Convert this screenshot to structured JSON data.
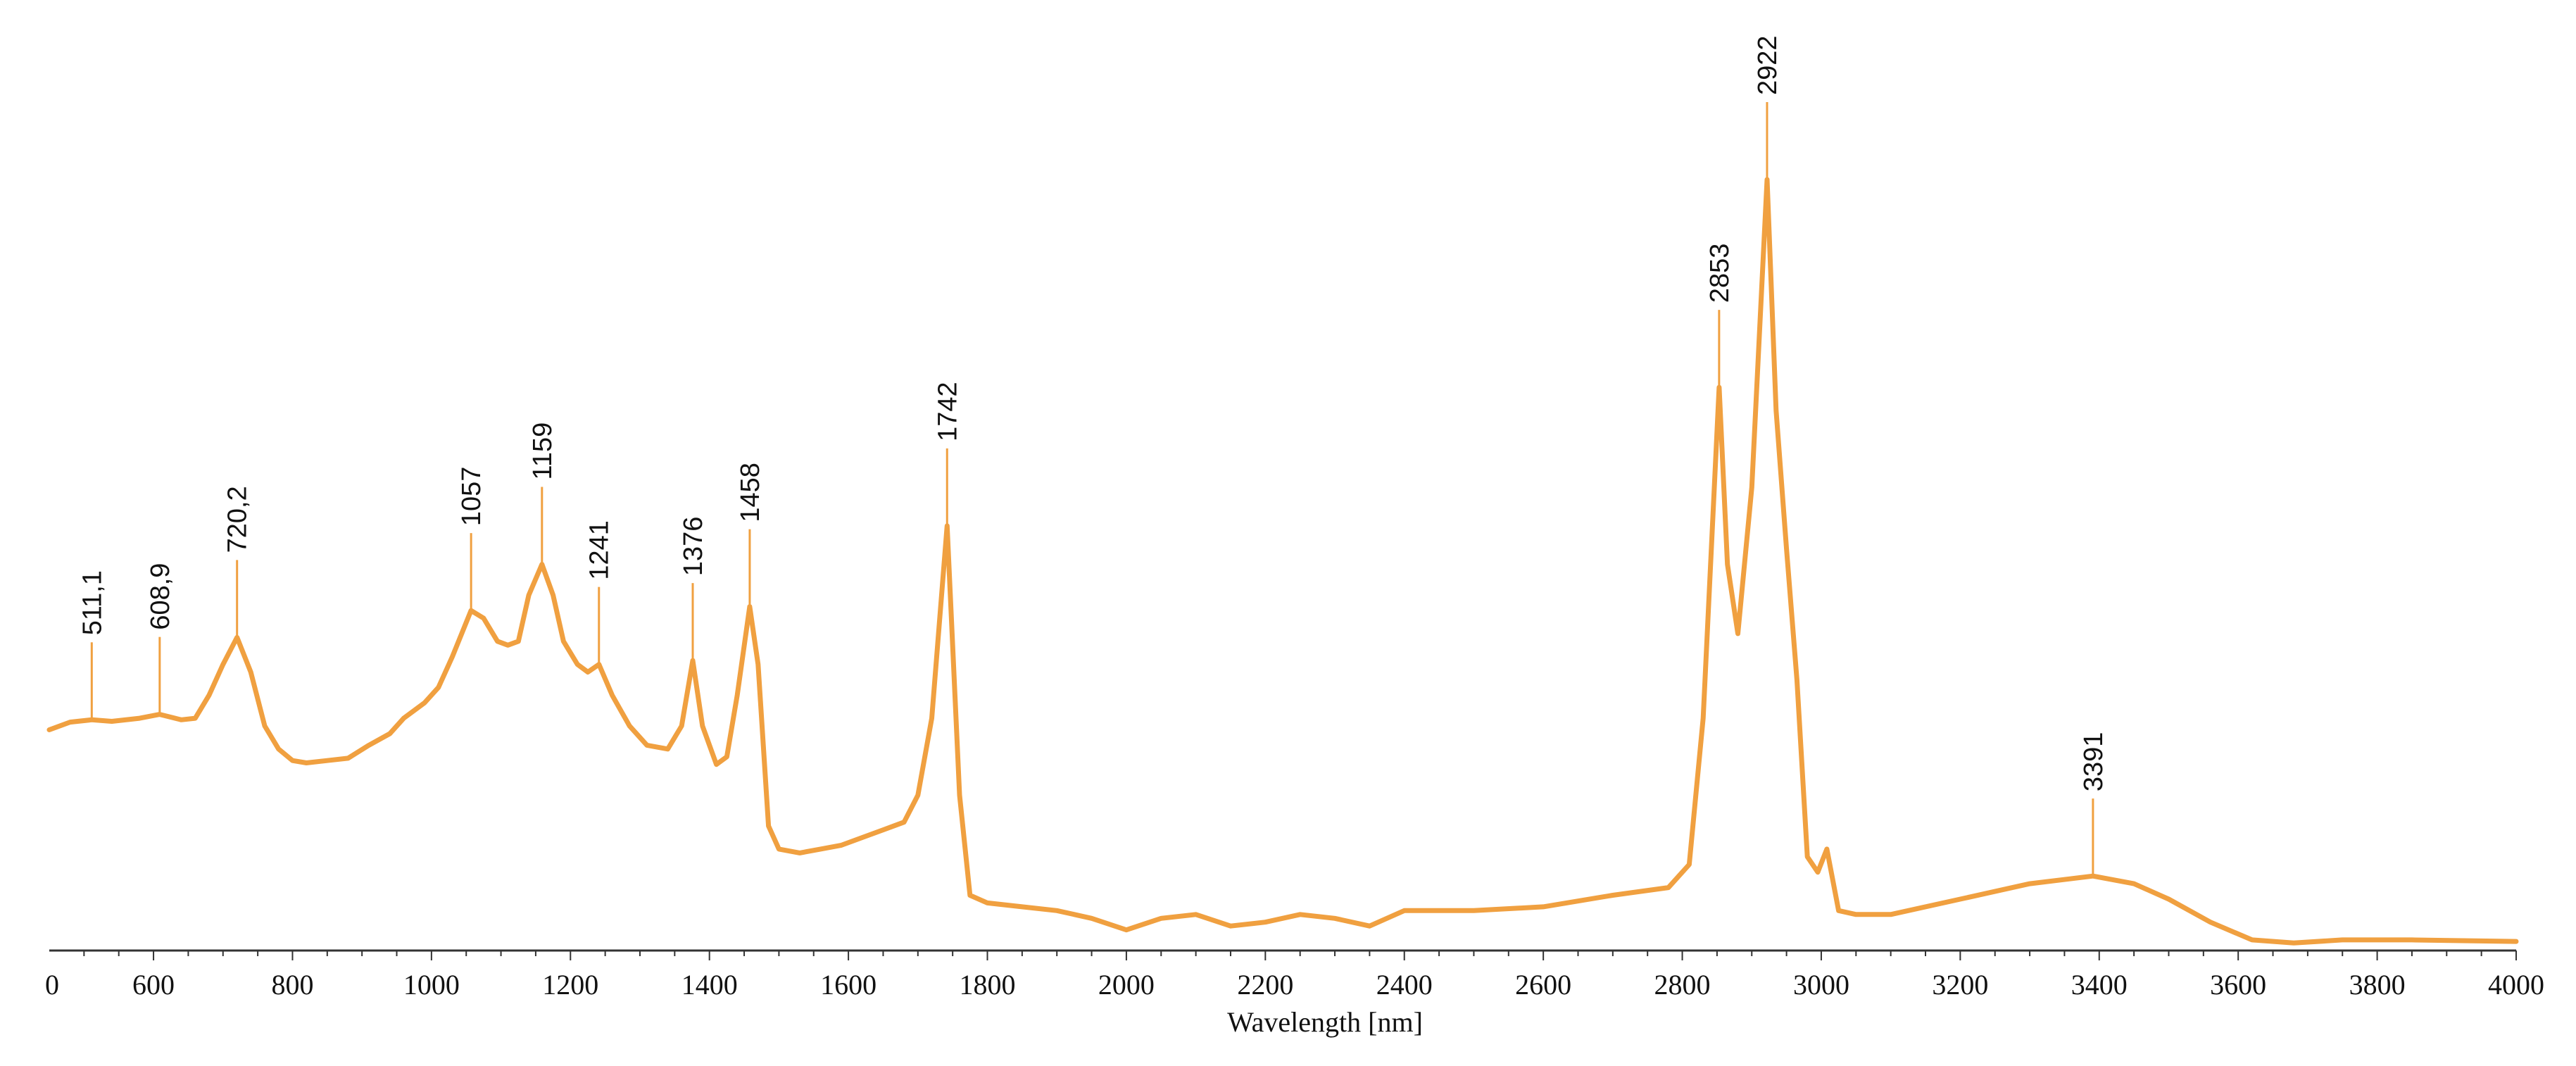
{
  "chart_data": {
    "type": "line",
    "title": "",
    "xlabel": "Wavelength [nm]",
    "ylabel": "",
    "xlim": [
      450,
      4000
    ],
    "ylim": [
      0,
      1.0
    ],
    "grid": false,
    "line_color": "#F0A040",
    "x_ticks": [
      "0",
      "600",
      "800",
      "1000",
      "1200",
      "1400",
      "1600",
      "1800",
      "2000",
      "2200",
      "2400",
      "2600",
      "2800",
      "3000",
      "3200",
      "3400",
      "3600",
      "3800",
      "4000"
    ],
    "series": [
      {
        "points": [
          [
            450,
            0.285
          ],
          [
            480,
            0.295
          ],
          [
            511.1,
            0.298
          ],
          [
            540,
            0.296
          ],
          [
            580,
            0.3
          ],
          [
            608.9,
            0.305
          ],
          [
            640,
            0.298
          ],
          [
            660,
            0.3
          ],
          [
            680,
            0.33
          ],
          [
            700,
            0.37
          ],
          [
            720.2,
            0.405
          ],
          [
            740,
            0.36
          ],
          [
            760,
            0.29
          ],
          [
            780,
            0.26
          ],
          [
            800,
            0.245
          ],
          [
            820,
            0.242
          ],
          [
            850,
            0.245
          ],
          [
            880,
            0.248
          ],
          [
            910,
            0.265
          ],
          [
            940,
            0.28
          ],
          [
            960,
            0.3
          ],
          [
            990,
            0.32
          ],
          [
            1010,
            0.34
          ],
          [
            1030,
            0.38
          ],
          [
            1057,
            0.44
          ],
          [
            1075,
            0.43
          ],
          [
            1095,
            0.4
          ],
          [
            1110,
            0.395
          ],
          [
            1125,
            0.4
          ],
          [
            1140,
            0.46
          ],
          [
            1159,
            0.5
          ],
          [
            1175,
            0.46
          ],
          [
            1190,
            0.4
          ],
          [
            1210,
            0.37
          ],
          [
            1225,
            0.36
          ],
          [
            1241,
            0.37
          ],
          [
            1260,
            0.33
          ],
          [
            1285,
            0.29
          ],
          [
            1310,
            0.265
          ],
          [
            1340,
            0.26
          ],
          [
            1360,
            0.29
          ],
          [
            1376,
            0.375
          ],
          [
            1390,
            0.29
          ],
          [
            1410,
            0.24
          ],
          [
            1425,
            0.25
          ],
          [
            1440,
            0.33
          ],
          [
            1458,
            0.445
          ],
          [
            1470,
            0.37
          ],
          [
            1485,
            0.16
          ],
          [
            1500,
            0.13
          ],
          [
            1530,
            0.125
          ],
          [
            1560,
            0.13
          ],
          [
            1590,
            0.135
          ],
          [
            1620,
            0.145
          ],
          [
            1650,
            0.155
          ],
          [
            1680,
            0.165
          ],
          [
            1700,
            0.2
          ],
          [
            1720,
            0.3
          ],
          [
            1742,
            0.55
          ],
          [
            1760,
            0.2
          ],
          [
            1775,
            0.07
          ],
          [
            1800,
            0.06
          ],
          [
            1850,
            0.055
          ],
          [
            1900,
            0.05
          ],
          [
            1950,
            0.04
          ],
          [
            2000,
            0.025
          ],
          [
            2050,
            0.04
          ],
          [
            2100,
            0.045
          ],
          [
            2150,
            0.03
          ],
          [
            2200,
            0.035
          ],
          [
            2250,
            0.045
          ],
          [
            2300,
            0.04
          ],
          [
            2350,
            0.03
          ],
          [
            2400,
            0.05
          ],
          [
            2500,
            0.05
          ],
          [
            2600,
            0.055
          ],
          [
            2700,
            0.07
          ],
          [
            2780,
            0.08
          ],
          [
            2810,
            0.11
          ],
          [
            2830,
            0.3
          ],
          [
            2853,
            0.73
          ],
          [
            2865,
            0.5
          ],
          [
            2880,
            0.41
          ],
          [
            2900,
            0.6
          ],
          [
            2922,
            1.0
          ],
          [
            2935,
            0.7
          ],
          [
            2950,
            0.52
          ],
          [
            2965,
            0.35
          ],
          [
            2980,
            0.12
          ],
          [
            2995,
            0.1
          ],
          [
            3008,
            0.13
          ],
          [
            3025,
            0.05
          ],
          [
            3050,
            0.045
          ],
          [
            3100,
            0.045
          ],
          [
            3200,
            0.065
          ],
          [
            3300,
            0.085
          ],
          [
            3391,
            0.095
          ],
          [
            3450,
            0.085
          ],
          [
            3500,
            0.065
          ],
          [
            3560,
            0.035
          ],
          [
            3620,
            0.012
          ],
          [
            3680,
            0.008
          ],
          [
            3750,
            0.012
          ],
          [
            3850,
            0.012
          ],
          [
            4000,
            0.01
          ]
        ]
      }
    ],
    "annotations": [
      {
        "x": 511.1,
        "label": "511,1"
      },
      {
        "x": 608.9,
        "label": "608,9"
      },
      {
        "x": 720.2,
        "label": "720,2"
      },
      {
        "x": 1057,
        "label": "1057"
      },
      {
        "x": 1159,
        "label": "1159"
      },
      {
        "x": 1241,
        "label": "1241"
      },
      {
        "x": 1376,
        "label": "1376"
      },
      {
        "x": 1458,
        "label": "1458"
      },
      {
        "x": 1742,
        "label": "1742"
      },
      {
        "x": 2853,
        "label": "2853"
      },
      {
        "x": 2922,
        "label": "2922"
      },
      {
        "x": 3391,
        "label": "3391"
      }
    ]
  }
}
